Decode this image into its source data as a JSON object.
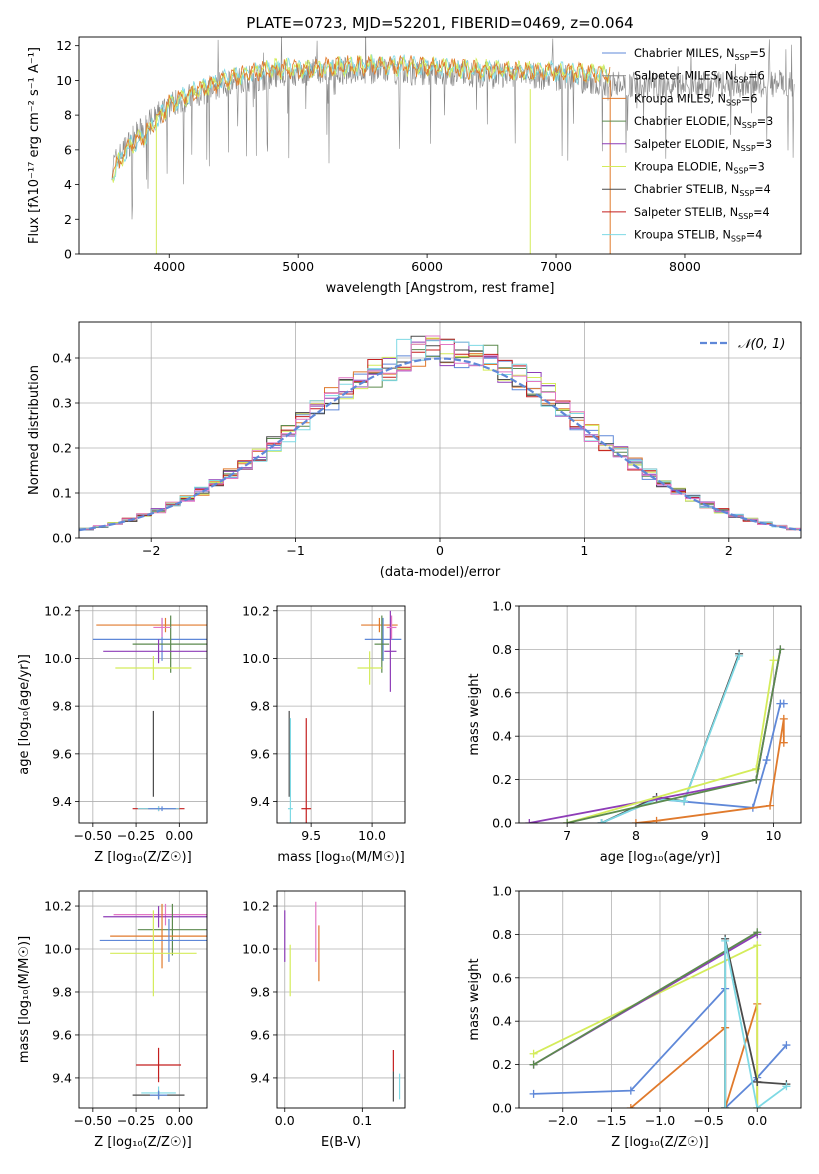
{
  "figure": {
    "title": "PLATE=0723, MJD=52201, FIBERID=0469, z=0.064"
  },
  "colors": {
    "blue": "#5f88d8",
    "orange": "#e07a2c",
    "olive": "#5c8a4e",
    "purple": "#8e3db7",
    "yellowgreen": "#d4ec5a",
    "darkgray": "#4a4a4a",
    "red": "#c41f1f",
    "cyan": "#7ed9e4",
    "pink": "#e277c5",
    "gray": "#888888"
  },
  "chart_data": [
    {
      "id": "spectrum",
      "type": "line",
      "xlabel": "wavelength [Angstrom, rest frame]",
      "ylabel": "Flux [f$_\\lambda$10$^{-17}$ erg cm$^{-2}$ s$^{-1}$ A$^{-1}$]",
      "ylabel_display": "Flux [fλ10⁻¹⁷ erg cm⁻² s⁻¹ A⁻¹]",
      "xlim": [
        3300,
        8900
      ],
      "ylim": [
        0,
        12.5
      ],
      "xticks": [
        4000,
        5000,
        6000,
        7000,
        8000
      ],
      "yticks": [
        0,
        2,
        4,
        6,
        8,
        10,
        12
      ],
      "grid": false,
      "legend_position": "top-right",
      "legend": [
        {
          "label": "Chabrier MILES, N$_{SSP}$=5",
          "display": "Chabrier MILES, N",
          "sub": "SSP",
          "tail": "=5",
          "color": "blue"
        },
        {
          "label": "Salpeter MILES, N$_{SSP}$=6",
          "display": "Salpeter MILES, N",
          "sub": "SSP",
          "tail": "=6",
          "color": "gray"
        },
        {
          "label": "Kroupa MILES, N$_{SSP}$=6",
          "display": "Kroupa MILES, N",
          "sub": "SSP",
          "tail": "=6",
          "color": "orange"
        },
        {
          "label": "Chabrier ELODIE, N$_{SSP}$=3",
          "display": "Chabrier ELODIE, N",
          "sub": "SSP",
          "tail": "=3",
          "color": "olive"
        },
        {
          "label": "Salpeter ELODIE, N$_{SSP}$=3",
          "display": "Salpeter ELODIE, N",
          "sub": "SSP",
          "tail": "=3",
          "color": "purple"
        },
        {
          "label": "Kroupa ELODIE, N$_{SSP}$=3",
          "display": "Kroupa ELODIE, N",
          "sub": "SSP",
          "tail": "=3",
          "color": "yellowgreen"
        },
        {
          "label": "Chabrier STELIB, N$_{SSP}$=4",
          "display": "Chabrier STELIB, N",
          "sub": "SSP",
          "tail": "=4",
          "color": "darkgray"
        },
        {
          "label": "Salpeter STELIB, N$_{SSP}$=4",
          "display": "Salpeter STELIB, N",
          "sub": "SSP",
          "tail": "=4",
          "color": "red"
        },
        {
          "label": "Kroupa STELIB, N$_{SSP}$=4",
          "display": "Kroupa STELIB, N",
          "sub": "SSP",
          "tail": "=4",
          "color": "cyan"
        }
      ],
      "continuum_model": {
        "x": [
          3550,
          3600,
          3700,
          3800,
          3900,
          4000,
          4200,
          4500,
          4800,
          5000,
          5300,
          5600,
          6000,
          6500,
          7000,
          7400
        ],
        "y": [
          4.5,
          5.2,
          6.3,
          6.8,
          7.6,
          8.6,
          9.4,
          10.2,
          10.7,
          10.6,
          10.8,
          10.9,
          10.8,
          10.6,
          10.5,
          10.4
        ]
      },
      "data_envelope": {
        "x": [
          3550,
          3700,
          4000,
          4500,
          5000,
          5500,
          6000,
          6500,
          7000,
          7500,
          8000,
          8500,
          8850
        ],
        "y": [
          5.0,
          6.5,
          8.6,
          10.0,
          10.4,
          10.6,
          10.5,
          10.3,
          10.2,
          9.8,
          9.7,
          9.8,
          9.8
        ]
      }
    },
    {
      "id": "residuals",
      "type": "line",
      "xlabel": "(data-model)/error",
      "ylabel": "Normed distribution",
      "xlim": [
        -2.5,
        2.5
      ],
      "ylim": [
        0,
        0.48
      ],
      "xticks": [
        -2,
        -1,
        0,
        1,
        2
      ],
      "xtick_labels": [
        "−2",
        "−1",
        "0",
        "1",
        "2"
      ],
      "yticks": [
        0.0,
        0.1,
        0.2,
        0.3,
        0.4
      ],
      "ytick_labels": [
        "0.0",
        "0.1",
        "0.2",
        "0.3",
        "0.4"
      ],
      "grid": true,
      "legend_position": "top-right",
      "legend_label": "𝒩(0, 1)",
      "gaussian": {
        "mean": 0,
        "sigma": 1,
        "color": "blue",
        "style": "dashed"
      }
    },
    {
      "id": "age_vs_Z",
      "type": "scatter",
      "xlabel": "Z [log$_{10}$(Z/Z$_\\odot$)]",
      "xlabel_display": "Z [log₁₀(Z/Z☉)]",
      "ylabel": "age  [log$_{10}$(age/yr)]",
      "ylabel_display": "age  [log₁₀(age/yr)]",
      "xlim": [
        -0.58,
        0.16
      ],
      "ylim": [
        9.31,
        10.22
      ],
      "xticks": [
        -0.5,
        -0.25,
        0.0
      ],
      "xtick_labels": [
        "−0.50",
        "−0.25",
        "0.00"
      ],
      "yticks": [
        9.4,
        9.6,
        9.8,
        10.0,
        10.2
      ],
      "ytick_labels": [
        "9.4",
        "9.6",
        "9.8",
        "10.0",
        "10.2"
      ],
      "grid": true,
      "points": [
        {
          "x": -0.08,
          "y": 10.14,
          "xerr": 0.4,
          "yerr": 0.03,
          "color": "orange"
        },
        {
          "x": -0.1,
          "y": 10.08,
          "xerr": 0.4,
          "yerr": 0.09,
          "color": "blue"
        },
        {
          "x": -0.05,
          "y": 10.06,
          "xerr": 0.22,
          "yerr": 0.12,
          "color": "olive"
        },
        {
          "x": -0.12,
          "y": 10.03,
          "xerr": 0.32,
          "yerr": 0.05,
          "color": "purple"
        },
        {
          "x": -0.15,
          "y": 9.96,
          "xerr": 0.22,
          "yerr": 0.05,
          "color": "yellowgreen"
        },
        {
          "x": -0.1,
          "y": 10.13,
          "xerr": 0.05,
          "yerr": 0.04,
          "color": "pink"
        },
        {
          "x": -0.15,
          "y": 9.6,
          "xerr": 0.0,
          "yerr": 0.18,
          "color": "darkgray"
        },
        {
          "x": -0.12,
          "y": 9.37,
          "xerr": 0.15,
          "yerr": 0.01,
          "color": "red"
        },
        {
          "x": -0.12,
          "y": 9.37,
          "xerr": 0.12,
          "yerr": 0.01,
          "color": "cyan"
        },
        {
          "x": -0.1,
          "y": 9.37,
          "xerr": 0.08,
          "yerr": 0.01,
          "color": "blue"
        }
      ]
    },
    {
      "id": "age_vs_mass",
      "type": "scatter",
      "xlabel": "mass [log$_{10}$(M/M$_\\odot$)]",
      "xlabel_display": "mass [log₁₀(M/M☉)]",
      "xlim": [
        9.22,
        10.27
      ],
      "ylim": [
        9.31,
        10.22
      ],
      "xticks": [
        9.5,
        10.0
      ],
      "xtick_labels": [
        "9.5",
        "10.0"
      ],
      "yticks": [
        9.4,
        9.6,
        9.8,
        10.0,
        10.2
      ],
      "ytick_labels": [
        "9.4",
        "9.6",
        "9.8",
        "10.0",
        "10.2"
      ],
      "grid": true,
      "points": [
        {
          "x": 10.06,
          "y": 10.14,
          "xerr": 0.15,
          "yerr": 0.03,
          "color": "orange"
        },
        {
          "x": 10.09,
          "y": 10.08,
          "xerr": 0.15,
          "yerr": 0.09,
          "color": "blue"
        },
        {
          "x": 10.08,
          "y": 10.06,
          "xerr": 0.06,
          "yerr": 0.12,
          "color": "olive"
        },
        {
          "x": 10.15,
          "y": 10.03,
          "xerr": 0.05,
          "yerr": 0.17,
          "color": "purple"
        },
        {
          "x": 9.98,
          "y": 9.96,
          "xerr": 0.1,
          "yerr": 0.07,
          "color": "yellowgreen"
        },
        {
          "x": 10.16,
          "y": 10.13,
          "xerr": 0.04,
          "yerr": 0.05,
          "color": "pink"
        },
        {
          "x": 9.32,
          "y": 9.6,
          "xerr": 0.0,
          "yerr": 0.18,
          "color": "darkgray"
        },
        {
          "x": 9.46,
          "y": 9.37,
          "xerr": 0.04,
          "yerr": 0.38,
          "color": "red"
        },
        {
          "x": 9.33,
          "y": 9.37,
          "xerr": 0.02,
          "yerr": 0.38,
          "color": "cyan"
        }
      ]
    },
    {
      "id": "massweight_vs_age",
      "type": "line",
      "xlabel": "age  [log$_{10}$(age/yr)]",
      "xlabel_display": "age  [log₁₀(age/yr)]",
      "ylabel": "mass weight",
      "xlim": [
        6.3,
        10.4
      ],
      "ylim": [
        0,
        1.0
      ],
      "xticks": [
        7,
        8,
        9,
        10
      ],
      "yticks": [
        0.0,
        0.2,
        0.4,
        0.6,
        0.8,
        1.0
      ],
      "ytick_labels": [
        "0.0",
        "0.2",
        "0.4",
        "0.6",
        "0.8",
        "1.0"
      ],
      "grid": true,
      "series": [
        {
          "color": "blue",
          "x": [
            7.5,
            8.3,
            9.7,
            9.9,
            10.1,
            10.15
          ],
          "y": [
            0.0,
            0.11,
            0.07,
            0.29,
            0.55,
            0.55
          ]
        },
        {
          "color": "orange",
          "x": [
            8.0,
            8.3,
            9.95,
            10.15,
            10.15
          ],
          "y": [
            0.0,
            0.01,
            0.08,
            0.48,
            0.37
          ]
        },
        {
          "color": "darkgray",
          "x": [
            7.5,
            8.3,
            8.7,
            9.5
          ],
          "y": [
            0.0,
            0.12,
            0.1,
            0.78
          ]
        },
        {
          "color": "cyan",
          "x": [
            7.5,
            8.3,
            8.7,
            9.5
          ],
          "y": [
            0.0,
            0.11,
            0.1,
            0.77
          ]
        },
        {
          "color": "purple",
          "x": [
            6.45,
            8.3,
            9.75,
            10.1
          ],
          "y": [
            0.0,
            0.11,
            0.2,
            0.8
          ]
        },
        {
          "color": "yellowgreen",
          "x": [
            7.0,
            9.75,
            10.0
          ],
          "y": [
            0.0,
            0.25,
            0.75
          ]
        },
        {
          "color": "olive",
          "x": [
            7.0,
            9.75,
            10.1
          ],
          "y": [
            0.0,
            0.2,
            0.8
          ]
        }
      ]
    },
    {
      "id": "mass_vs_Z",
      "type": "scatter",
      "xlabel": "Z [log$_{10}$(Z/Z$_\\odot$)]",
      "xlabel_display": "Z [log₁₀(Z/Z☉)]",
      "ylabel": "mass [log$_{10}$(M/M$_\\odot$)]",
      "ylabel_display": "mass [log₁₀(M/M☉)]",
      "xlim": [
        -0.58,
        0.16
      ],
      "ylim": [
        9.26,
        10.27
      ],
      "xticks": [
        -0.5,
        -0.25,
        0.0
      ],
      "xtick_labels": [
        "−0.50",
        "−0.25",
        "0.00"
      ],
      "yticks": [
        9.4,
        9.6,
        9.8,
        10.0,
        10.2
      ],
      "ytick_labels": [
        "9.4",
        "9.6",
        "9.8",
        "10.0",
        "10.2"
      ],
      "grid": true,
      "points": [
        {
          "x": -0.08,
          "y": 10.16,
          "xerr": 0.3,
          "yerr": 0.05,
          "color": "pink"
        },
        {
          "x": -0.12,
          "y": 10.15,
          "xerr": 0.32,
          "yerr": 0.05,
          "color": "purple"
        },
        {
          "x": -0.04,
          "y": 10.09,
          "xerr": 0.2,
          "yerr": 0.12,
          "color": "olive"
        },
        {
          "x": -0.1,
          "y": 10.06,
          "xerr": 0.3,
          "yerr": 0.15,
          "color": "orange"
        },
        {
          "x": -0.06,
          "y": 10.04,
          "xerr": 0.4,
          "yerr": 0.1,
          "color": "blue"
        },
        {
          "x": -0.15,
          "y": 9.98,
          "xerr": 0.25,
          "yerr": 0.2,
          "color": "yellowgreen"
        },
        {
          "x": -0.12,
          "y": 9.46,
          "xerr": 0.13,
          "yerr": 0.08,
          "color": "red"
        },
        {
          "x": -0.12,
          "y": 9.33,
          "xerr": 0.1,
          "yerr": 0.03,
          "color": "cyan"
        },
        {
          "x": -0.12,
          "y": 9.32,
          "xerr": 0.15,
          "yerr": 0.02,
          "color": "darkgray"
        },
        {
          "x": -0.12,
          "y": 9.32,
          "xerr": 0.05,
          "yerr": 0.02,
          "color": "blue"
        }
      ]
    },
    {
      "id": "mass_vs_ebv",
      "type": "scatter",
      "xlabel": "E(B-V)",
      "xlim": [
        -0.01,
        0.155
      ],
      "ylim": [
        9.26,
        10.27
      ],
      "xticks": [
        0.0,
        0.1
      ],
      "xtick_labels": [
        "0.0",
        "0.1"
      ],
      "yticks": [
        9.4,
        9.6,
        9.8,
        10.0,
        10.2
      ],
      "ytick_labels": [
        "9.4",
        "9.6",
        "9.8",
        "10.0",
        "10.2"
      ],
      "grid": true,
      "points": [
        {
          "x": 0.0,
          "y": 10.06,
          "xerr": 0,
          "yerr": 0.12,
          "color": "purple"
        },
        {
          "x": 0.007,
          "y": 9.9,
          "xerr": 0,
          "yerr": 0.12,
          "color": "yellowgreen"
        },
        {
          "x": 0.04,
          "y": 10.08,
          "xerr": 0,
          "yerr": 0.14,
          "color": "pink"
        },
        {
          "x": 0.044,
          "y": 9.98,
          "xerr": 0,
          "yerr": 0.13,
          "color": "orange"
        },
        {
          "x": 0.14,
          "y": 9.48,
          "xerr": 0,
          "yerr": 0.05,
          "color": "red"
        },
        {
          "x": 0.14,
          "y": 9.36,
          "xerr": 0,
          "yerr": 0.07,
          "color": "darkgray"
        },
        {
          "x": 0.148,
          "y": 9.36,
          "xerr": 0,
          "yerr": 0.06,
          "color": "cyan"
        }
      ]
    },
    {
      "id": "massweight_vs_Z",
      "type": "line",
      "xlabel": "Z [log$_{10}$(Z/Z$_\\odot$)]",
      "xlabel_display": "Z [log₁₀(Z/Z☉)]",
      "ylabel": "mass weight",
      "xlim": [
        -2.45,
        0.45
      ],
      "ylim": [
        0,
        1.0
      ],
      "xticks": [
        -2.0,
        -1.5,
        -1.0,
        -0.5,
        0.0
      ],
      "xtick_labels": [
        "−2.0",
        "−1.5",
        "−1.0",
        "−0.5",
        "0.0"
      ],
      "yticks": [
        0.0,
        0.2,
        0.4,
        0.6,
        0.8,
        1.0
      ],
      "ytick_labels": [
        "0.0",
        "0.2",
        "0.4",
        "0.6",
        "0.8",
        "1.0"
      ],
      "grid": true,
      "series": [
        {
          "color": "blue",
          "x": [
            -2.3,
            -1.3,
            -0.33,
            -0.33,
            0.0,
            0.3
          ],
          "y": [
            0.065,
            0.08,
            0.55,
            0.0,
            0.14,
            0.29
          ]
        },
        {
          "color": "orange",
          "x": [
            -1.3,
            -0.33,
            -0.33,
            0.0,
            0.0
          ],
          "y": [
            0.0,
            0.37,
            0.0,
            0.48,
            0.0
          ]
        },
        {
          "color": "yellowgreen",
          "x": [
            -2.3,
            0.0,
            0.0
          ],
          "y": [
            0.25,
            0.75,
            0.0
          ]
        },
        {
          "color": "purple",
          "x": [
            -2.3,
            0.0
          ],
          "y": [
            0.2,
            0.8
          ]
        },
        {
          "color": "olive",
          "x": [
            -2.3,
            0.0
          ],
          "y": [
            0.2,
            0.81
          ]
        },
        {
          "color": "darkgray",
          "x": [
            -0.33,
            -0.33,
            0.0,
            0.3
          ],
          "y": [
            0.0,
            0.78,
            0.12,
            0.11
          ]
        },
        {
          "color": "cyan",
          "x": [
            -0.33,
            -0.33,
            0.0,
            0.3
          ],
          "y": [
            0.0,
            0.77,
            0.0,
            0.1
          ]
        }
      ]
    }
  ]
}
